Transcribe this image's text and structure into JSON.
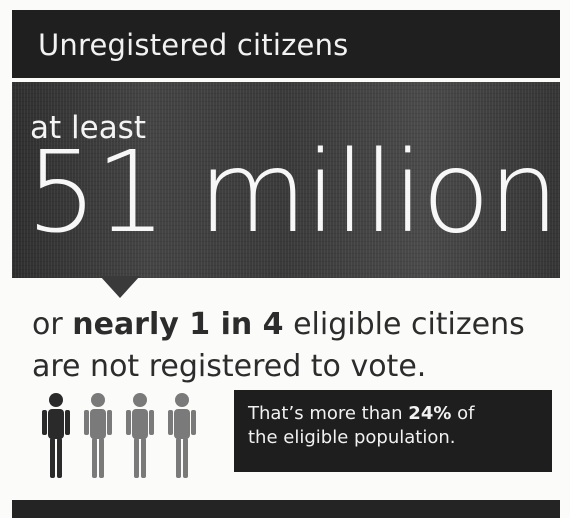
{
  "header": {
    "title": "Unregistered citizens"
  },
  "main_stat": {
    "prefix": "at least",
    "value": "51 million"
  },
  "statement": {
    "line1_prefix": "or ",
    "line1_bold": "nearly 1 in 4",
    "line1_suffix": " eligible citizens",
    "line2": "are not registered to vote."
  },
  "people_icons": [
    {
      "name": "person-dark-icon",
      "color": "#2a2a2a"
    },
    {
      "name": "person-light-icon",
      "color": "#7a7a7a"
    },
    {
      "name": "person-light-icon",
      "color": "#7a7a7a"
    },
    {
      "name": "person-light-icon",
      "color": "#7a7a7a"
    }
  ],
  "callout": {
    "line1_prefix": "That’s more than ",
    "line1_bold": "24%",
    "line1_suffix": " of",
    "line2": "the eligible population."
  }
}
